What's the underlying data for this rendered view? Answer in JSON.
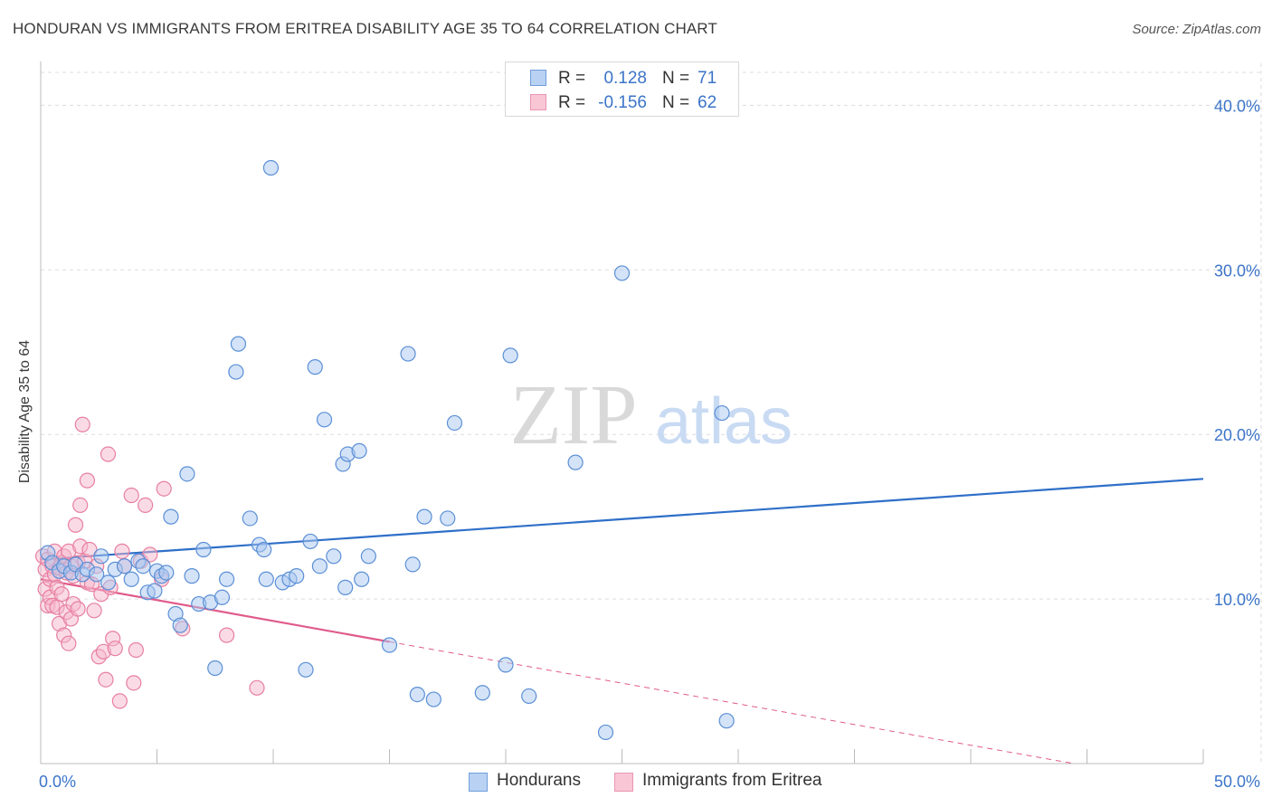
{
  "header": {
    "title": "HONDURAN VS IMMIGRANTS FROM ERITREA DISABILITY AGE 35 TO 64 CORRELATION CHART",
    "source": "Source: ZipAtlas.com"
  },
  "watermark": {
    "zip": "ZIP",
    "atlas": "atlas"
  },
  "legend": {
    "rows": [
      {
        "r_label": "R =",
        "r_value": "0.128",
        "n_label": "N =",
        "n_value": "71"
      },
      {
        "r_label": "R =",
        "r_value": "-0.156",
        "n_label": "N =",
        "n_value": "62"
      }
    ]
  },
  "colors": {
    "blue_fill": "#a9c8f0",
    "blue_stroke": "#5b8fd6",
    "blue_line": "#2f6fc9",
    "pink_fill": "#f6b7cb",
    "pink_stroke": "#e77fa1",
    "pink_line": "#e05b8b",
    "grid": "#dddddd",
    "axis_text": "#3b74c9"
  },
  "chart_data": {
    "type": "scatter",
    "title": "HONDURAN VS IMMIGRANTS FROM ERITREA DISABILITY AGE 35 TO 64 CORRELATION CHART",
    "xlabel": "",
    "ylabel": "Disability Age 35 to 64",
    "xlim": [
      0,
      50
    ],
    "ylim": [
      0,
      42
    ],
    "x_tick_labels": [
      "0.0%",
      "50.0%"
    ],
    "y_ticks": [
      10,
      20,
      30,
      40
    ],
    "y_tick_labels": [
      "10.0%",
      "20.0%",
      "30.0%",
      "40.0%"
    ],
    "legend_position": "bottom-center",
    "series": [
      {
        "name": "Hondurans",
        "color": "blue",
        "R": 0.128,
        "N": 71,
        "trend": {
          "x": [
            0,
            50
          ],
          "y": [
            12.4,
            17.3
          ],
          "dashed_after": null
        },
        "points": [
          [
            0.3,
            12.8
          ],
          [
            0.5,
            12.2
          ],
          [
            0.8,
            11.7
          ],
          [
            1.0,
            12.0
          ],
          [
            1.3,
            11.6
          ],
          [
            1.5,
            12.1
          ],
          [
            1.8,
            11.5
          ],
          [
            2.0,
            11.8
          ],
          [
            2.4,
            11.5
          ],
          [
            2.6,
            12.6
          ],
          [
            2.9,
            11.0
          ],
          [
            3.2,
            11.8
          ],
          [
            3.6,
            12.0
          ],
          [
            3.9,
            11.2
          ],
          [
            4.2,
            12.3
          ],
          [
            4.4,
            12.0
          ],
          [
            4.6,
            10.4
          ],
          [
            4.9,
            10.5
          ],
          [
            5.0,
            11.7
          ],
          [
            5.2,
            11.4
          ],
          [
            5.4,
            11.6
          ],
          [
            5.6,
            15.0
          ],
          [
            5.8,
            9.1
          ],
          [
            6.0,
            8.4
          ],
          [
            6.3,
            17.6
          ],
          [
            6.5,
            11.4
          ],
          [
            6.8,
            9.7
          ],
          [
            7.0,
            13.0
          ],
          [
            7.3,
            9.8
          ],
          [
            7.5,
            5.8
          ],
          [
            7.8,
            10.1
          ],
          [
            8.0,
            11.2
          ],
          [
            8.4,
            23.8
          ],
          [
            8.5,
            25.5
          ],
          [
            9.0,
            14.9
          ],
          [
            9.4,
            13.3
          ],
          [
            9.6,
            13.0
          ],
          [
            9.7,
            11.2
          ],
          [
            9.9,
            36.2
          ],
          [
            10.4,
            11.0
          ],
          [
            10.7,
            11.2
          ],
          [
            11.0,
            11.4
          ],
          [
            11.4,
            5.7
          ],
          [
            11.6,
            13.5
          ],
          [
            11.8,
            24.1
          ],
          [
            12.0,
            12.0
          ],
          [
            12.2,
            20.9
          ],
          [
            12.6,
            12.6
          ],
          [
            13.0,
            18.2
          ],
          [
            13.1,
            10.7
          ],
          [
            13.2,
            18.8
          ],
          [
            13.7,
            19.0
          ],
          [
            13.8,
            11.2
          ],
          [
            14.1,
            12.6
          ],
          [
            15.0,
            7.2
          ],
          [
            15.8,
            24.9
          ],
          [
            16.0,
            12.1
          ],
          [
            16.2,
            4.2
          ],
          [
            16.5,
            15.0
          ],
          [
            16.9,
            3.9
          ],
          [
            17.5,
            14.9
          ],
          [
            17.8,
            20.7
          ],
          [
            20.2,
            24.8
          ],
          [
            21.0,
            4.1
          ],
          [
            23.0,
            18.3
          ],
          [
            24.3,
            1.9
          ],
          [
            25.0,
            29.8
          ],
          [
            29.5,
            2.6
          ],
          [
            19.0,
            4.3
          ],
          [
            20.0,
            6.0
          ],
          [
            29.3,
            21.3
          ]
        ]
      },
      {
        "name": "Immigrants from Eritrea",
        "color": "pink",
        "R": -0.156,
        "N": 62,
        "trend": {
          "x": [
            0,
            15
          ],
          "y": [
            11.2,
            7.4
          ],
          "dashed_extension_to": [
            50,
            -1.4
          ]
        },
        "points": [
          [
            0.1,
            12.6
          ],
          [
            0.2,
            11.8
          ],
          [
            0.2,
            10.6
          ],
          [
            0.3,
            9.6
          ],
          [
            0.3,
            12.4
          ],
          [
            0.4,
            11.2
          ],
          [
            0.4,
            10.1
          ],
          [
            0.5,
            12.0
          ],
          [
            0.5,
            9.6
          ],
          [
            0.6,
            12.9
          ],
          [
            0.6,
            11.5
          ],
          [
            0.7,
            10.7
          ],
          [
            0.7,
            9.5
          ],
          [
            0.8,
            11.9
          ],
          [
            0.8,
            8.5
          ],
          [
            0.9,
            12.2
          ],
          [
            0.9,
            10.3
          ],
          [
            1.0,
            12.6
          ],
          [
            1.0,
            7.8
          ],
          [
            1.1,
            11.6
          ],
          [
            1.1,
            9.2
          ],
          [
            1.2,
            12.9
          ],
          [
            1.2,
            7.3
          ],
          [
            1.3,
            12.0
          ],
          [
            1.3,
            8.8
          ],
          [
            1.4,
            11.4
          ],
          [
            1.4,
            9.7
          ],
          [
            1.5,
            14.5
          ],
          [
            1.6,
            12.2
          ],
          [
            1.6,
            9.4
          ],
          [
            1.7,
            13.2
          ],
          [
            1.7,
            15.7
          ],
          [
            1.8,
            20.6
          ],
          [
            1.9,
            12.3
          ],
          [
            2.0,
            17.2
          ],
          [
            2.0,
            11.0
          ],
          [
            2.1,
            13.0
          ],
          [
            2.2,
            10.9
          ],
          [
            2.3,
            9.3
          ],
          [
            2.4,
            12.0
          ],
          [
            2.5,
            6.5
          ],
          [
            2.6,
            10.3
          ],
          [
            2.7,
            6.8
          ],
          [
            2.8,
            5.1
          ],
          [
            2.9,
            18.8
          ],
          [
            3.0,
            10.7
          ],
          [
            3.1,
            7.6
          ],
          [
            3.2,
            7.0
          ],
          [
            3.4,
            3.8
          ],
          [
            3.5,
            12.9
          ],
          [
            3.6,
            12.0
          ],
          [
            3.9,
            16.3
          ],
          [
            4.0,
            4.9
          ],
          [
            4.1,
            6.9
          ],
          [
            4.3,
            12.3
          ],
          [
            4.5,
            15.7
          ],
          [
            4.7,
            12.7
          ],
          [
            5.2,
            11.2
          ],
          [
            5.3,
            16.7
          ],
          [
            6.1,
            8.2
          ],
          [
            8.0,
            7.8
          ],
          [
            9.3,
            4.6
          ]
        ]
      }
    ]
  },
  "bottom_legend": [
    {
      "label": "Hondurans"
    },
    {
      "label": "Immigrants from Eritrea"
    }
  ]
}
